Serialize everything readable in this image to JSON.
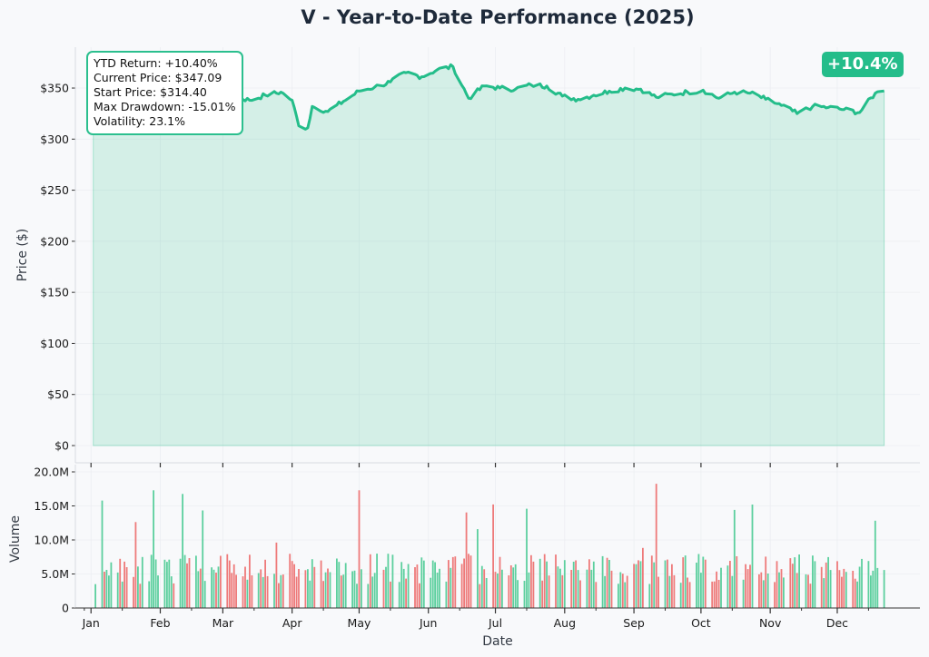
{
  "chart_data": [
    {
      "type": "area",
      "title": "V - Year-to-Date Performance (2025)",
      "ylabel": "Price ($)",
      "ylim": [
        0,
        390
      ],
      "y_ticks": [
        0,
        50,
        100,
        150,
        200,
        250,
        300,
        350
      ],
      "y_tick_labels": [
        "$0",
        "$50",
        "$100",
        "$150",
        "$200",
        "$250",
        "$300",
        "$350"
      ],
      "grid": true,
      "series": [
        {
          "color": "#24bd8a",
          "x": [
            "2025-01-02",
            "2025-01-09",
            "2025-01-16",
            "2025-01-23",
            "2025-01-30",
            "2025-02-06",
            "2025-02-13",
            "2025-02-20",
            "2025-02-27",
            "2025-03-06",
            "2025-03-13",
            "2025-03-20",
            "2025-03-27",
            "2025-04-01",
            "2025-04-04",
            "2025-04-08",
            "2025-04-10",
            "2025-04-17",
            "2025-04-24",
            "2025-05-01",
            "2025-05-08",
            "2025-05-15",
            "2025-05-22",
            "2025-05-29",
            "2025-06-05",
            "2025-06-12",
            "2025-06-19",
            "2025-06-26",
            "2025-07-03",
            "2025-07-10",
            "2025-07-17",
            "2025-07-24",
            "2025-07-31",
            "2025-08-07",
            "2025-08-14",
            "2025-08-21",
            "2025-08-28",
            "2025-09-04",
            "2025-09-11",
            "2025-09-18",
            "2025-09-25",
            "2025-10-02",
            "2025-10-09",
            "2025-10-16",
            "2025-10-23",
            "2025-10-30",
            "2025-11-06",
            "2025-11-13",
            "2025-11-20",
            "2025-11-27",
            "2025-12-04",
            "2025-12-11",
            "2025-12-18",
            "2025-12-22"
          ],
          "values": [
            314.4,
            317,
            322,
            318,
            330,
            338,
            348,
            355,
            359,
            342,
            338,
            343,
            346,
            338,
            313,
            311,
            332,
            327,
            337,
            347,
            351,
            356,
            365,
            361,
            368,
            371,
            340,
            352,
            350,
            349,
            353,
            352,
            342,
            339,
            343,
            347,
            350,
            349,
            341,
            344,
            346,
            348,
            340,
            346,
            345,
            339,
            333,
            325,
            332,
            331,
            329,
            326,
            345,
            347.09
          ]
        }
      ],
      "annotations": {
        "stats": [
          "YTD Return: +10.40%",
          "Current Price: $347.09",
          "Start Price: $314.40",
          "Max Drawdown: -15.01%",
          "Volatility: 23.1%"
        ],
        "badge": "+10.4%"
      }
    },
    {
      "type": "bar",
      "ylabel": "Volume",
      "xlabel": "Date",
      "ylim": [
        0,
        20000000
      ],
      "y_ticks": [
        0,
        5000000,
        10000000,
        15000000,
        20000000
      ],
      "y_tick_labels": [
        "0",
        "5.0M",
        "10.0M",
        "15.0M",
        "20.0M"
      ],
      "x_range": [
        "2024-12-25",
        "2026-01-07"
      ],
      "x_tick_labels": [
        "Jan",
        "Feb",
        "Mar",
        "Apr",
        "May",
        "Jun",
        "Jul",
        "Aug",
        "Sep",
        "Oct",
        "Nov",
        "Dec"
      ],
      "x_tick_dates": [
        "2025-01-01",
        "2025-02-01",
        "2025-03-01",
        "2025-04-01",
        "2025-05-01",
        "2025-06-01",
        "2025-07-01",
        "2025-08-01",
        "2025-09-01",
        "2025-10-01",
        "2025-11-01",
        "2025-12-01"
      ],
      "up_color": "#5ccf9e",
      "down_color": "#ee7a7a",
      "grid": true
    }
  ]
}
